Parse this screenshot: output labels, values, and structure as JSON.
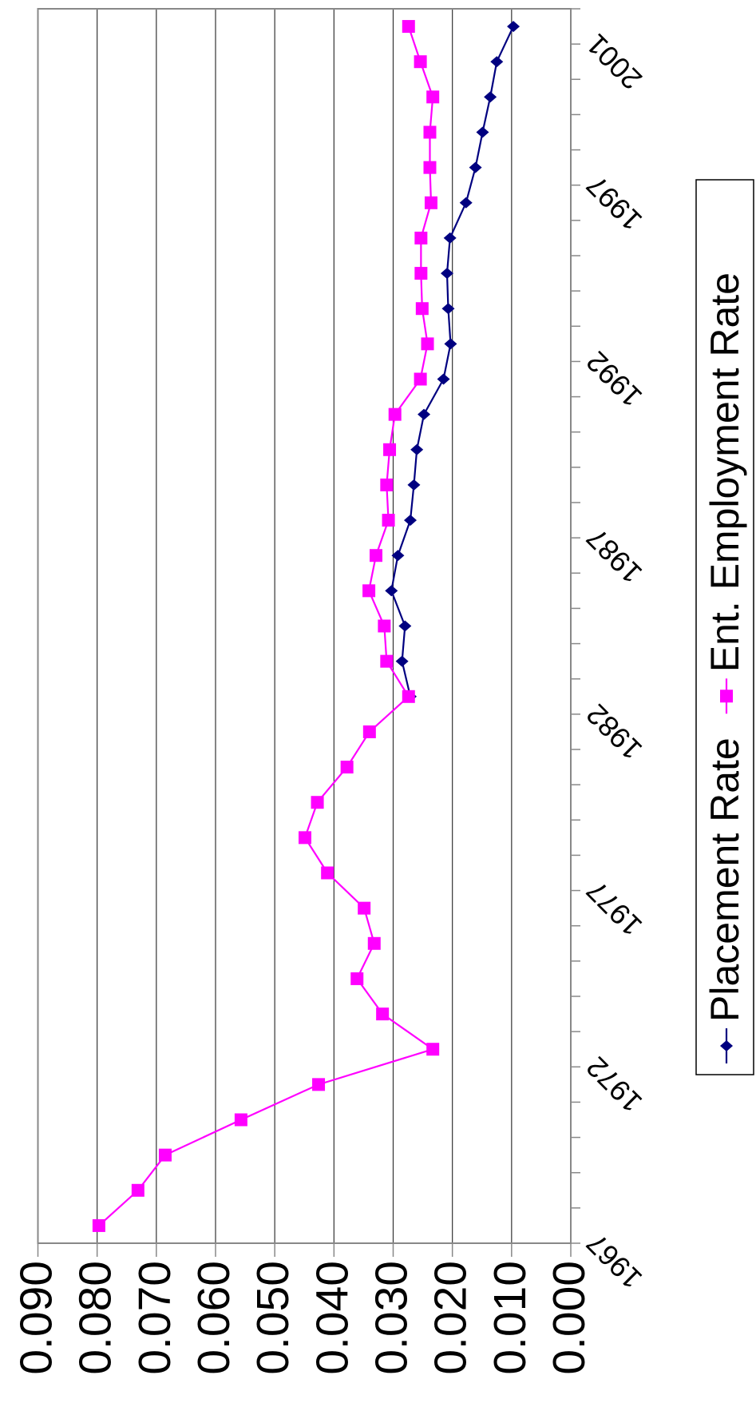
{
  "chart_data": {
    "type": "line",
    "categories": [
      "1967",
      null,
      null,
      null,
      null,
      "1972",
      null,
      null,
      null,
      null,
      "1977",
      null,
      null,
      null,
      null,
      "1982",
      null,
      null,
      null,
      null,
      "1987",
      null,
      null,
      null,
      null,
      "1992",
      null,
      null,
      null,
      null,
      "1997",
      null,
      null,
      null,
      "2001"
    ],
    "series": [
      {
        "name": "Placement Rate",
        "color": "#000080",
        "marker": "diamond",
        "values": [
          null,
          null,
          null,
          null,
          null,
          null,
          null,
          null,
          null,
          null,
          null,
          null,
          null,
          null,
          null,
          0.0271,
          0.0285,
          0.028,
          0.0303,
          0.0292,
          0.0271,
          0.0265,
          0.026,
          0.0248,
          0.0215,
          0.0203,
          0.0207,
          0.0209,
          0.0204,
          0.0177,
          0.0161,
          0.0149,
          0.0136,
          0.0125,
          0.0097
        ]
      },
      {
        "name": "Ent. Employment Rate",
        "color": "#ff00ff",
        "marker": "square",
        "values": [
          0.0797,
          0.0731,
          0.0685,
          0.0557,
          0.0426,
          0.0233,
          0.0318,
          0.0361,
          0.0332,
          0.0349,
          0.0411,
          0.0449,
          0.0428,
          0.0378,
          0.034,
          0.0274,
          0.0311,
          0.0315,
          0.0341,
          0.0329,
          0.0308,
          0.0311,
          0.0306,
          0.0297,
          0.0254,
          0.0242,
          0.0251,
          0.0253,
          0.0253,
          0.0236,
          0.0238,
          0.0238,
          0.0233,
          0.0254,
          0.0274
        ]
      }
    ],
    "ylim": [
      0,
      0.09
    ],
    "yticks": [
      {
        "value": 0,
        "label": "0.000"
      },
      {
        "value": 0.01,
        "label": "0.010"
      },
      {
        "value": 0.02,
        "label": "0.020"
      },
      {
        "value": 0.03,
        "label": "0.030"
      },
      {
        "value": 0.04,
        "label": "0.040"
      },
      {
        "value": 0.05,
        "label": "0.050"
      },
      {
        "value": 0.06,
        "label": "0.060"
      },
      {
        "value": 0.07,
        "label": "0.070"
      },
      {
        "value": 0.08,
        "label": "0.080"
      },
      {
        "value": 0.09,
        "label": "0.090"
      }
    ],
    "grid": true,
    "legend": "bottom",
    "rotation": -90
  }
}
